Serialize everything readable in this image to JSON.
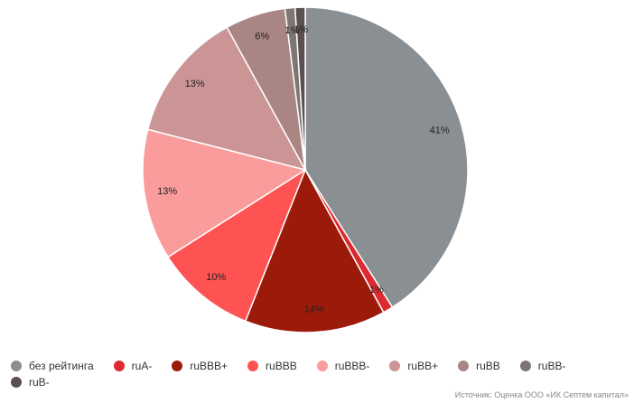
{
  "chart_data": {
    "type": "pie",
    "categories": [
      "без рейтинга",
      "ruA-",
      "ruBBB+",
      "ruBBB",
      "ruBBB-",
      "ruBB+",
      "ruBB",
      "ruBB-",
      "ruB-"
    ],
    "values": [
      41,
      1,
      14,
      10,
      13,
      13,
      6,
      1,
      1
    ],
    "value_labels": [
      "41%",
      "1%",
      "14%",
      "10%",
      "13%",
      "13%",
      "6%",
      "1%",
      "1%"
    ],
    "colors": [
      "#8a8f93",
      "#dd2a30",
      "#9c1a0a",
      "#ff5252",
      "#fb9c9c",
      "#cc9595",
      "#a98683",
      "#7e7575",
      "#5b4f4f"
    ],
    "legend": "bottom",
    "source": "Источник: Оценка ООО «ИК Септем капитал»"
  }
}
